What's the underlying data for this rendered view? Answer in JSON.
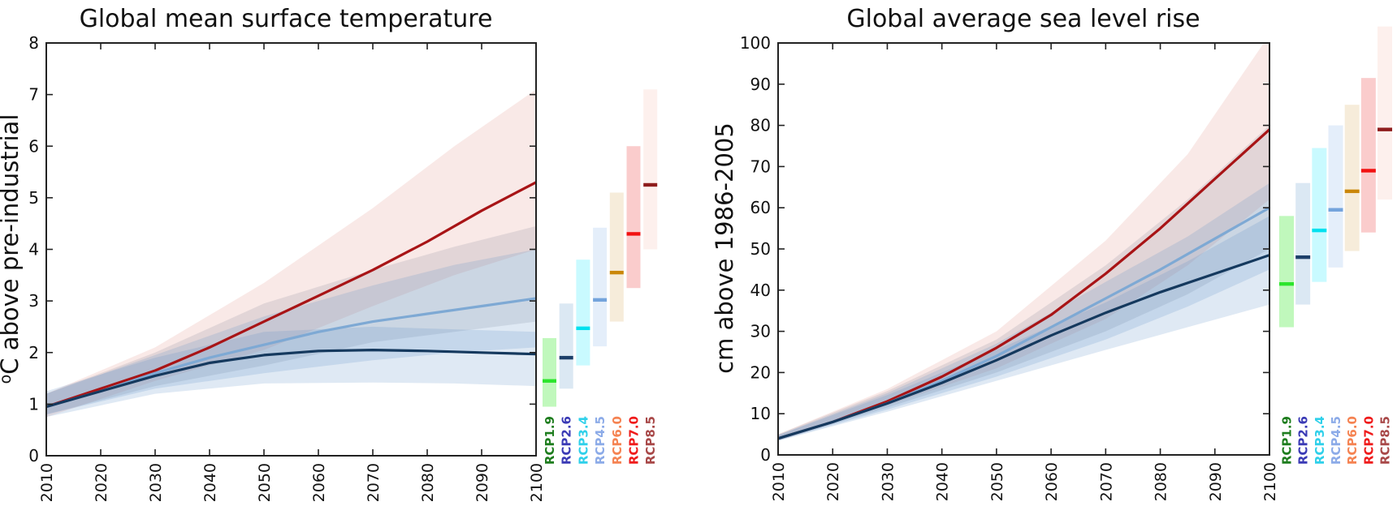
{
  "page": {
    "background": "#ffffff"
  },
  "chart_data": [
    {
      "type": "line",
      "title": "Global mean surface temperature",
      "ylabel_sup": "o",
      "ylabel": "C above pre-industrial",
      "xlabel": "",
      "xlim": [
        2010,
        2100
      ],
      "ylim": [
        0,
        8
      ],
      "xticks": [
        2010,
        2020,
        2030,
        2040,
        2050,
        2060,
        2070,
        2080,
        2090,
        2100
      ],
      "yticks": [
        0,
        1,
        2,
        3,
        4,
        5,
        6,
        7,
        8
      ],
      "grid": false,
      "legend_position": "none",
      "x": [
        2010,
        2020,
        2030,
        2040,
        2050,
        2060,
        2070,
        2080,
        2090,
        2100
      ],
      "series": [
        {
          "name": "dark-red-line",
          "color": "#a81416",
          "values": [
            0.95,
            1.3,
            1.65,
            2.1,
            2.6,
            3.1,
            3.6,
            4.15,
            4.75,
            5.3
          ]
        },
        {
          "name": "light-blue-line",
          "color": "#7ea9d4",
          "values": [
            0.95,
            1.25,
            1.6,
            1.9,
            2.15,
            2.4,
            2.6,
            2.75,
            2.9,
            3.05
          ]
        },
        {
          "name": "navy-line",
          "color": "#15395e",
          "values": [
            0.95,
            1.25,
            1.55,
            1.8,
            1.95,
            2.03,
            2.05,
            2.03,
            2.0,
            1.97
          ]
        }
      ],
      "bands": [
        {
          "name": "pink-band",
          "color": "rgba(205,85,70,0.13)",
          "x": [
            2010,
            2030,
            2050,
            2070,
            2085,
            2100
          ],
          "upper": [
            1.2,
            2.1,
            3.35,
            4.8,
            6.0,
            7.1
          ],
          "lower": [
            0.75,
            1.45,
            2.05,
            2.9,
            3.5,
            4.0
          ]
        },
        {
          "name": "gray-band",
          "color": "rgba(110,120,135,0.17)",
          "x": [
            2010,
            2030,
            2050,
            2070,
            2085,
            2100
          ],
          "upper": [
            1.2,
            2.0,
            2.95,
            3.6,
            4.05,
            4.45
          ],
          "lower": [
            0.8,
            1.35,
            1.75,
            2.2,
            2.4,
            2.6
          ]
        },
        {
          "name": "blue-mid-band",
          "color": "rgba(85,140,195,0.19)",
          "x": [
            2010,
            2030,
            2050,
            2070,
            2085,
            2100
          ],
          "upper": [
            1.2,
            1.95,
            2.7,
            3.3,
            3.7,
            4.0
          ],
          "lower": [
            0.8,
            1.3,
            1.6,
            1.85,
            2.0,
            2.1
          ]
        },
        {
          "name": "blue-low-band",
          "color": "rgba(85,140,195,0.19)",
          "x": [
            2010,
            2030,
            2050,
            2070,
            2085,
            2100
          ],
          "upper": [
            1.25,
            1.9,
            2.4,
            2.5,
            2.45,
            2.4
          ],
          "lower": [
            0.75,
            1.2,
            1.4,
            1.42,
            1.4,
            1.35
          ]
        }
      ],
      "scenario_bars": [
        {
          "label": "RCP1.9",
          "label_color": "#1e7d1e",
          "bar_color": "#c0f8bc",
          "median_color": "#2ce52c",
          "low": 0.95,
          "median": 1.45,
          "high": 2.28
        },
        {
          "label": "RCP2.6",
          "label_color": "#3a3ab5",
          "bar_color": "#dbe8f3",
          "median_color": "#1c3f69",
          "low": 1.3,
          "median": 1.9,
          "high": 2.95
        },
        {
          "label": "RCP3.4",
          "label_color": "#2fd0ea",
          "bar_color": "#c9faff",
          "median_color": "#00e1ef",
          "low": 1.75,
          "median": 2.47,
          "high": 3.8
        },
        {
          "label": "RCP4.5",
          "label_color": "#8cabe8",
          "bar_color": "#e4eefa",
          "median_color": "#73a3dc",
          "low": 2.12,
          "median": 3.02,
          "high": 4.42
        },
        {
          "label": "RCP6.0",
          "label_color": "#f58352",
          "bar_color": "#f6ecda",
          "median_color": "#ca8708",
          "low": 2.6,
          "median": 3.55,
          "high": 5.1
        },
        {
          "label": "RCP7.0",
          "label_color": "#ef1b1b",
          "bar_color": "#facccc",
          "median_color": "#f21111",
          "low": 3.25,
          "median": 4.3,
          "high": 6.0
        },
        {
          "label": "RCP8.5",
          "label_color": "#a84848",
          "bar_color": "#fdf0ed",
          "median_color": "#8e1c1c",
          "low": 4.0,
          "median": 5.25,
          "high": 7.1
        }
      ]
    },
    {
      "type": "line",
      "title": "Global average sea level rise",
      "ylabel_sup": "",
      "ylabel": "cm above 1986-2005",
      "xlabel": "",
      "xlim": [
        2010,
        2100
      ],
      "ylim": [
        0,
        100
      ],
      "xticks": [
        2010,
        2020,
        2030,
        2040,
        2050,
        2060,
        2070,
        2080,
        2090,
        2100
      ],
      "yticks": [
        0,
        10,
        20,
        30,
        40,
        50,
        60,
        70,
        80,
        90,
        100
      ],
      "grid": false,
      "legend_position": "none",
      "x": [
        2010,
        2020,
        2030,
        2040,
        2050,
        2060,
        2070,
        2080,
        2090,
        2100
      ],
      "series": [
        {
          "name": "dark-red-line",
          "color": "#a81416",
          "values": [
            4,
            8,
            13,
            19,
            26,
            34,
            44,
            55,
            67,
            79
          ]
        },
        {
          "name": "light-blue-line",
          "color": "#7ea9d4",
          "values": [
            4,
            8,
            12.5,
            18,
            24,
            31,
            38,
            45,
            52.5,
            60
          ]
        },
        {
          "name": "navy-line",
          "color": "#15395e",
          "values": [
            4,
            8,
            12.5,
            17.5,
            23,
            29,
            34.5,
            39.5,
            44,
            48.5
          ]
        }
      ],
      "bands": [
        {
          "name": "pink-band",
          "color": "rgba(205,85,70,0.13)",
          "x": [
            2010,
            2030,
            2050,
            2070,
            2085,
            2100
          ],
          "upper": [
            5,
            16,
            30,
            52,
            73,
            102
          ],
          "lower": [
            3.5,
            12,
            21,
            33,
            46,
            62
          ]
        },
        {
          "name": "gray-band",
          "color": "rgba(110,120,135,0.17)",
          "x": [
            2010,
            2030,
            2050,
            2070,
            2085,
            2100
          ],
          "upper": [
            5,
            15.5,
            28,
            46,
            62,
            80
          ],
          "lower": [
            3.5,
            11.5,
            20,
            30,
            39,
            50
          ]
        },
        {
          "name": "blue-mid-band",
          "color": "rgba(85,140,195,0.19)",
          "x": [
            2010,
            2030,
            2050,
            2070,
            2085,
            2100
          ],
          "upper": [
            4.8,
            15,
            27,
            42,
            53,
            66
          ],
          "lower": [
            3.5,
            11,
            19,
            28,
            36,
            45
          ]
        },
        {
          "name": "blue-low-band",
          "color": "rgba(85,140,195,0.19)",
          "x": [
            2010,
            2030,
            2050,
            2070,
            2085,
            2100
          ],
          "upper": [
            4.8,
            14.5,
            25.5,
            37,
            47,
            58
          ],
          "lower": [
            3.4,
            10.5,
            18,
            25.5,
            31,
            36.5
          ]
        }
      ],
      "scenario_bars": [
        {
          "label": "RCP1.9",
          "label_color": "#1e7d1e",
          "bar_color": "#c0f8bc",
          "median_color": "#2ce52c",
          "low": 31,
          "median": 41.5,
          "high": 58
        },
        {
          "label": "RCP2.6",
          "label_color": "#3a3ab5",
          "bar_color": "#dbe8f3",
          "median_color": "#1c3f69",
          "low": 36.5,
          "median": 48,
          "high": 66
        },
        {
          "label": "RCP3.4",
          "label_color": "#2fd0ea",
          "bar_color": "#c9faff",
          "median_color": "#00e1ef",
          "low": 42,
          "median": 54.5,
          "high": 74.5
        },
        {
          "label": "RCP4.5",
          "label_color": "#8cabe8",
          "bar_color": "#e4eefa",
          "median_color": "#73a3dc",
          "low": 45.5,
          "median": 59.5,
          "high": 80
        },
        {
          "label": "RCP6.0",
          "label_color": "#f58352",
          "bar_color": "#f6ecda",
          "median_color": "#ca8708",
          "low": 49.5,
          "median": 64,
          "high": 85
        },
        {
          "label": "RCP7.0",
          "label_color": "#ef1b1b",
          "bar_color": "#facccc",
          "median_color": "#f21111",
          "low": 54,
          "median": 69,
          "high": 91.5
        },
        {
          "label": "RCP8.5",
          "label_color": "#a84848",
          "bar_color": "#fdf0ed",
          "median_color": "#8e1c1c",
          "low": 62,
          "median": 79,
          "high": 104
        }
      ]
    }
  ]
}
